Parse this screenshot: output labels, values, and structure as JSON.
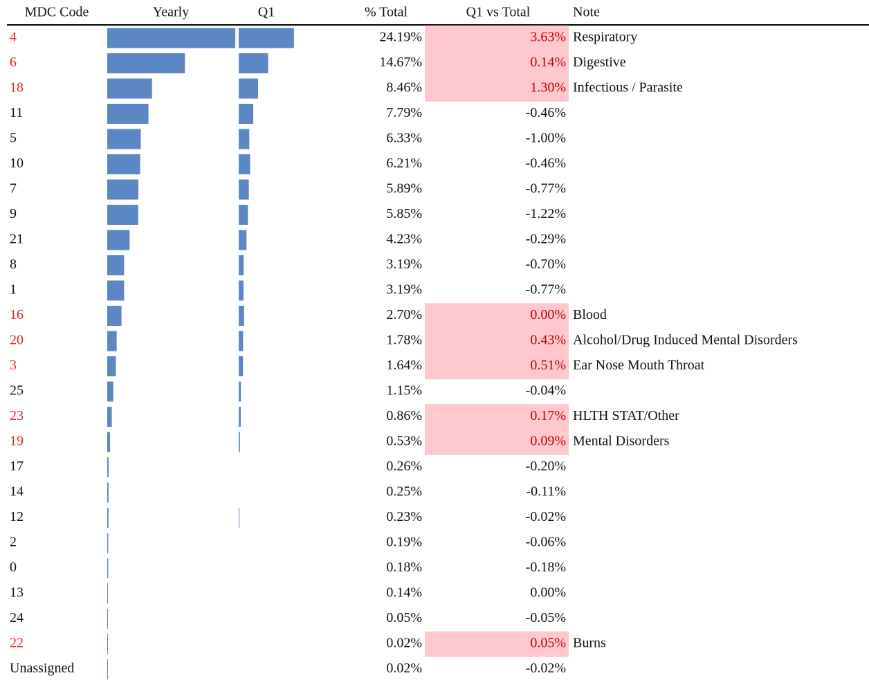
{
  "header": [
    "MDC Code",
    "Yearly",
    "Q1",
    "% Total",
    "Q1 vs Total",
    "Note"
  ],
  "rows": [
    {
      "code": "4",
      "pct": 24.19,
      "pct_label": "24.19%",
      "diff": 3.63,
      "diff_label": "3.63%",
      "note": "Respiratory"
    },
    {
      "code": "6",
      "pct": 14.67,
      "pct_label": "14.67%",
      "diff": 0.14,
      "diff_label": "0.14%",
      "note": "Digestive"
    },
    {
      "code": "18",
      "pct": 8.46,
      "pct_label": "8.46%",
      "diff": 1.3,
      "diff_label": "1.30%",
      "note": "Infectious / Parasite"
    },
    {
      "code": "11",
      "pct": 7.79,
      "pct_label": "7.79%",
      "diff": -0.46,
      "diff_label": "-0.46%"
    },
    {
      "code": "5",
      "pct": 6.33,
      "pct_label": "6.33%",
      "diff": -1.0,
      "diff_label": "-1.00%"
    },
    {
      "code": "10",
      "pct": 6.21,
      "pct_label": "6.21%",
      "diff": -0.46,
      "diff_label": "-0.46%"
    },
    {
      "code": "7",
      "pct": 5.89,
      "pct_label": "5.89%",
      "diff": -0.77,
      "diff_label": "-0.77%"
    },
    {
      "code": "9",
      "pct": 5.85,
      "pct_label": "5.85%",
      "diff": -1.22,
      "diff_label": "-1.22%"
    },
    {
      "code": "21",
      "pct": 4.23,
      "pct_label": "4.23%",
      "diff": -0.29,
      "diff_label": "-0.29%"
    },
    {
      "code": "8",
      "pct": 3.19,
      "pct_label": "3.19%",
      "diff": -0.7,
      "diff_label": "-0.70%"
    },
    {
      "code": "1",
      "pct": 3.19,
      "pct_label": "3.19%",
      "diff": -0.77,
      "diff_label": "-0.77%"
    },
    {
      "code": "16",
      "pct": 2.7,
      "pct_label": "2.70%",
      "diff": 0.0,
      "diff_label": "0.00%",
      "note": "Blood"
    },
    {
      "code": "20",
      "pct": 1.78,
      "pct_label": "1.78%",
      "diff": 0.43,
      "diff_label": "0.43%",
      "note": "Alcohol/Drug Induced Mental Disorders"
    },
    {
      "code": "3",
      "pct": 1.64,
      "pct_label": "1.64%",
      "diff": 0.51,
      "diff_label": "0.51%",
      "note": "Ear Nose Mouth Throat"
    },
    {
      "code": "25",
      "pct": 1.15,
      "pct_label": "1.15%",
      "diff": -0.04,
      "diff_label": "-0.04%"
    },
    {
      "code": "23",
      "pct": 0.86,
      "pct_label": "0.86%",
      "diff": 0.17,
      "diff_label": "0.17%",
      "note": "HLTH STAT/Other"
    },
    {
      "code": "19",
      "pct": 0.53,
      "pct_label": "0.53%",
      "diff": 0.09,
      "diff_label": "0.09%",
      "note": "Mental Disorders"
    },
    {
      "code": "17",
      "pct": 0.26,
      "pct_label": "0.26%",
      "diff": -0.2,
      "diff_label": "-0.20%"
    },
    {
      "code": "14",
      "pct": 0.25,
      "pct_label": "0.25%",
      "diff": -0.11,
      "diff_label": "-0.11%"
    },
    {
      "code": "12",
      "pct": 0.23,
      "pct_label": "0.23%",
      "diff": -0.02,
      "diff_label": "-0.02%"
    },
    {
      "code": "2",
      "pct": 0.19,
      "pct_label": "0.19%",
      "diff": -0.06,
      "diff_label": "-0.06%"
    },
    {
      "code": "0",
      "pct": 0.18,
      "pct_label": "0.18%",
      "diff": -0.18,
      "diff_label": "-0.18%"
    },
    {
      "code": "13",
      "pct": 0.14,
      "pct_label": "0.14%",
      "diff": 0.0,
      "diff_label": "0.00%"
    },
    {
      "code": "24",
      "pct": 0.05,
      "pct_label": "0.05%",
      "diff": -0.05,
      "diff_label": "-0.05%"
    },
    {
      "code": "22",
      "pct": 0.02,
      "pct_label": "0.02%",
      "diff": 0.05,
      "diff_label": "0.05%",
      "note": "Burns"
    },
    {
      "code": "Unassigned",
      "pct": 0.02,
      "pct_label": "0.02%",
      "diff": -0.02,
      "diff_label": "-0.02%"
    }
  ]
}
